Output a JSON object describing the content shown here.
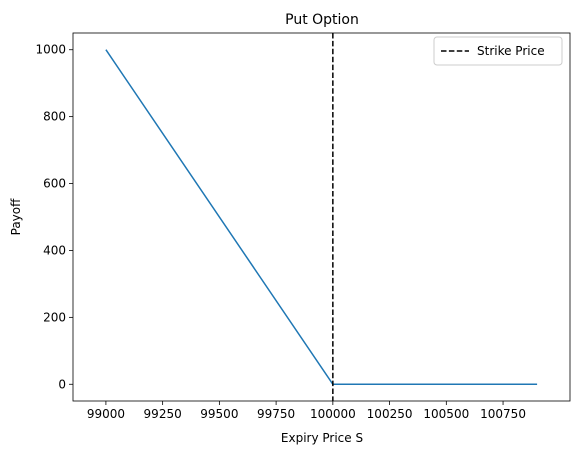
{
  "chart_data": {
    "type": "line",
    "title": "Put Option",
    "xlabel": "Expiry Price S",
    "ylabel": "Payoff",
    "xlim": [
      98855,
      101045
    ],
    "ylim": [
      -50,
      1050
    ],
    "x_ticks": [
      99000,
      99250,
      99500,
      99750,
      100000,
      100250,
      100500,
      100750
    ],
    "y_ticks": [
      0,
      200,
      400,
      600,
      800,
      1000
    ],
    "grid": false,
    "legend": {
      "placement": "upper right",
      "entries": [
        "Strike Price"
      ]
    },
    "series": [
      {
        "color": "#1f77b4",
        "style": "solid",
        "x": [
          99000,
          100000,
          100900
        ],
        "y": [
          1000,
          0,
          0
        ]
      }
    ],
    "reference_lines": [
      {
        "name": "Strike Price",
        "orientation": "vertical",
        "x": 100000,
        "color": "#000000",
        "style": "dashed"
      }
    ]
  }
}
